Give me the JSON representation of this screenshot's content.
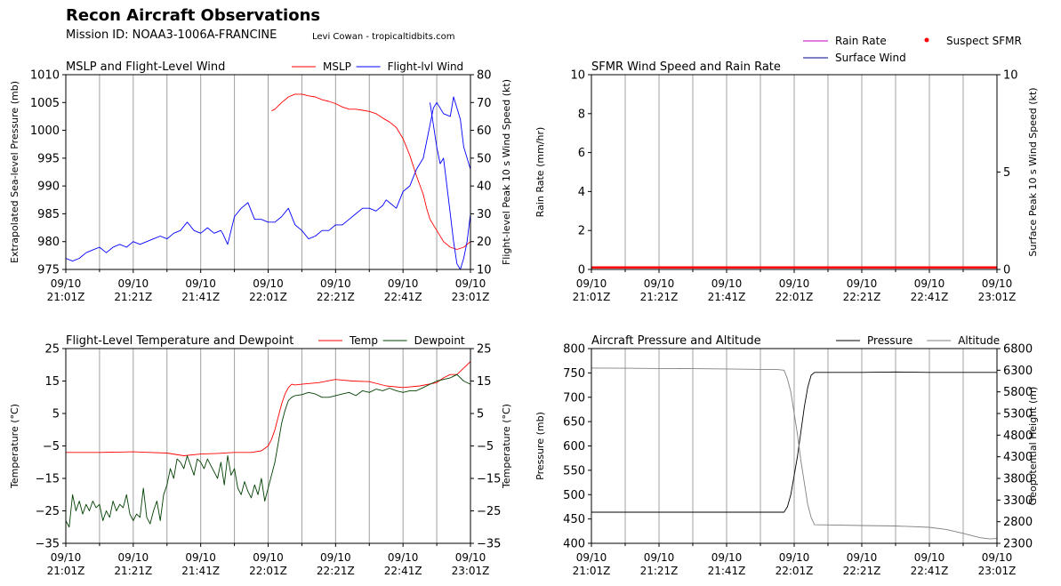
{
  "header": {
    "title": "Recon Aircraft Observations",
    "mission": "Mission ID: NOAA3-1006A-FRANCINE",
    "credit": "Levi Cowan - tropicaltidbits.com"
  },
  "colors": {
    "mslp": "#ff0000",
    "wind": "#0000ff",
    "rain": "#bf00bf",
    "surface_wind": "#00008b",
    "suspect": "#ff0000",
    "temp": "#ff0000",
    "dew": "#004000",
    "pressure": "#000000",
    "altitude": "#808080",
    "grid": "#a0a0a0"
  },
  "time_ticks": [
    "09/10\n21:01Z",
    "09/10\n21:21Z",
    "09/10\n21:41Z",
    "09/10\n22:01Z",
    "09/10\n22:21Z",
    "09/10\n22:41Z",
    "09/10\n23:01Z"
  ],
  "chart_data": [
    {
      "id": "mslp-wind",
      "type": "line",
      "title": "MSLP and Flight-Level Wind",
      "x_unit": "minutes after 21:01Z",
      "xlim": [
        0,
        120
      ],
      "ylabel": "Extrapolated Sea-level Pressure (mb)",
      "ylabel_right": "Flight-level Peak 10 s Wind Speed (kt)",
      "ylim": [
        975,
        1010
      ],
      "yticks": [
        975,
        980,
        985,
        990,
        995,
        1000,
        1005,
        1010
      ],
      "ylim_right": [
        10,
        80
      ],
      "yticks_right": [
        10,
        20,
        30,
        40,
        50,
        60,
        70,
        80
      ],
      "legend": [
        "MSLP",
        "Flight-lvl Wind"
      ],
      "series": [
        {
          "name": "MSLP",
          "axis": "left",
          "color_key": "mslp",
          "x": [
            61,
            62,
            64,
            66,
            68,
            70,
            72,
            74,
            76,
            78,
            80,
            82,
            84,
            86,
            88,
            90,
            92,
            94,
            96,
            98,
            100,
            102,
            104,
            106,
            107,
            108,
            110,
            112,
            114,
            116,
            118,
            120
          ],
          "y": [
            1003.5,
            1003.8,
            1005,
            1006,
            1006.5,
            1006.5,
            1006.2,
            1006,
            1005.5,
            1005.2,
            1004.8,
            1004.2,
            1003.8,
            1003.8,
            1003.6,
            1003.4,
            1003,
            1002.2,
            1001.5,
            1000.5,
            998.5,
            995.5,
            991.8,
            988.5,
            986,
            984,
            982,
            980,
            979,
            978.6,
            979,
            980
          ]
        },
        {
          "name": "Flight-lvl Wind",
          "axis": "right",
          "color_key": "wind",
          "x": [
            0,
            2,
            4,
            6,
            8,
            10,
            12,
            14,
            16,
            18,
            20,
            22,
            24,
            26,
            28,
            30,
            32,
            34,
            36,
            38,
            40,
            42,
            44,
            46,
            46.5,
            48,
            50,
            52,
            54,
            56,
            58,
            60,
            62,
            64,
            66,
            68,
            70,
            72,
            74,
            76,
            78,
            80,
            82,
            84,
            86,
            88,
            90,
            92,
            94,
            95,
            96,
            98,
            100,
            102,
            104,
            106,
            107,
            108,
            109,
            110,
            112,
            114,
            115,
            116,
            117,
            118,
            120
          ],
          "y": [
            14,
            13,
            14,
            16,
            17,
            18,
            16,
            18,
            19,
            18,
            20,
            19,
            20,
            21,
            22,
            21,
            23,
            24,
            27,
            24,
            23,
            25,
            23,
            24,
            23,
            19,
            29,
            32,
            34,
            28,
            28,
            27,
            27,
            29,
            32,
            26,
            24,
            21,
            22,
            24,
            24,
            26,
            26,
            28,
            30,
            32,
            32,
            31,
            33,
            35,
            34,
            32,
            38,
            40,
            46,
            50,
            56,
            62,
            68,
            70,
            66,
            65,
            72,
            68,
            64,
            54,
            46
          ]
        },
        {
          "name": "Flight-lvl Wind (cont.)",
          "axis": "right",
          "color_key": "wind",
          "x": [
            108,
            109,
            110,
            111,
            112,
            113,
            114,
            115,
            116,
            117,
            118,
            119,
            120
          ],
          "y": [
            70,
            62,
            54,
            48,
            50,
            40,
            30,
            20,
            12,
            10,
            14,
            20,
            30
          ]
        }
      ]
    },
    {
      "id": "sfmr-rain",
      "type": "line",
      "title": "SFMR Wind Speed and Rain Rate",
      "x_unit": "minutes after 21:01Z",
      "xlim": [
        0,
        120
      ],
      "ylabel": "Rain Rate (mm/hr)",
      "ylabel_right": "Surface Peak 10 s Wind Speed (kt)",
      "ylim": [
        0,
        10
      ],
      "yticks": [
        0,
        2,
        4,
        6,
        8,
        10
      ],
      "ylim_right": [
        0,
        10
      ],
      "yticks_right": [
        0,
        5,
        10
      ],
      "legend": [
        "Rain Rate",
        "Surface Wind",
        "Suspect SFMR"
      ],
      "series": [
        {
          "name": "Rain Rate",
          "axis": "left",
          "color_key": "rain",
          "x": [
            0,
            120
          ],
          "y": [
            0,
            0
          ]
        },
        {
          "name": "Surface Wind",
          "axis": "right",
          "color_key": "surface_wind",
          "x": [
            0,
            120
          ],
          "y": [
            0,
            0
          ]
        },
        {
          "name": "Suspect SFMR",
          "axis": "right",
          "color_key": "suspect",
          "x": [
            0,
            120
          ],
          "y": [
            0.1,
            0.1
          ]
        }
      ]
    },
    {
      "id": "temp-dew",
      "type": "line",
      "title": "Flight-Level Temperature and Dewpoint",
      "x_unit": "minutes after 21:01Z",
      "xlim": [
        0,
        120
      ],
      "ylabel": "Temperature (°C)",
      "ylabel_right": "Temperature (°C)",
      "ylim": [
        -35,
        25
      ],
      "yticks": [
        -35,
        -25,
        -15,
        -5,
        5,
        15,
        25
      ],
      "legend": [
        "Temp",
        "Dewpoint"
      ],
      "series": [
        {
          "name": "Temp",
          "axis": "left",
          "color_key": "temp",
          "x": [
            0,
            10,
            20,
            25,
            30,
            35,
            40,
            45,
            50,
            55,
            58,
            60,
            61,
            62,
            63,
            64,
            65,
            66,
            67,
            68,
            70,
            75,
            80,
            85,
            90,
            95,
            100,
            105,
            110,
            112,
            114,
            116,
            118,
            120
          ],
          "y": [
            -7,
            -7,
            -6.8,
            -7,
            -7.2,
            -8,
            -7.5,
            -7.3,
            -7,
            -7,
            -6.5,
            -5,
            -3,
            0,
            4,
            8,
            11,
            13,
            14,
            13.8,
            14,
            14.5,
            15.5,
            15,
            14.8,
            13.5,
            13,
            13.5,
            14.5,
            16,
            17,
            17,
            19,
            21
          ]
        },
        {
          "name": "Dewpoint",
          "axis": "left",
          "color_key": "dew",
          "x": [
            0,
            1,
            2,
            3,
            4,
            5,
            6,
            7,
            8,
            9,
            10,
            11,
            12,
            13,
            14,
            15,
            16,
            17,
            18,
            19,
            20,
            21,
            22,
            23,
            24,
            25,
            26,
            27,
            28,
            29,
            30,
            31,
            32,
            33,
            34,
            35,
            36,
            37,
            38,
            39,
            40,
            41,
            42,
            43,
            44,
            45,
            46,
            47,
            48,
            49,
            50,
            51,
            52,
            53,
            54,
            55,
            56,
            57,
            58,
            59,
            60,
            61,
            62,
            63,
            64,
            65,
            66,
            67,
            68,
            70,
            72,
            74,
            76,
            78,
            80,
            82,
            84,
            86,
            88,
            90,
            92,
            94,
            96,
            98,
            100,
            102,
            104,
            106,
            108,
            110,
            112,
            114,
            116,
            118,
            120
          ],
          "y": [
            -28,
            -30,
            -20,
            -25,
            -22,
            -26,
            -23,
            -25,
            -22,
            -24,
            -23,
            -28,
            -25,
            -27,
            -22,
            -25,
            -23,
            -24,
            -20,
            -26,
            -28,
            -26,
            -27,
            -18,
            -27,
            -29,
            -25,
            -22,
            -28,
            -20,
            -17,
            -12,
            -15,
            -9,
            -10,
            -12,
            -8,
            -11,
            -14,
            -9,
            -10,
            -12,
            -9,
            -11,
            -13,
            -15,
            -10,
            -17,
            -8,
            -14,
            -12,
            -18,
            -20,
            -16,
            -19,
            -21,
            -17,
            -20,
            -15,
            -22,
            -18,
            -14,
            -10,
            -4,
            2,
            6,
            9,
            10,
            10.5,
            10.8,
            11.5,
            11,
            10,
            10,
            10.5,
            11,
            11.5,
            10.5,
            12,
            11.5,
            12.5,
            12,
            12.8,
            12,
            11.5,
            12,
            12,
            13,
            14,
            15,
            15.5,
            16,
            17,
            15,
            14
          ]
        }
      ]
    },
    {
      "id": "press-alt",
      "type": "line",
      "title": "Aircraft Pressure and Altitude",
      "x_unit": "minutes after 21:01Z",
      "xlim": [
        0,
        120
      ],
      "ylabel": "Pressure (mb)",
      "ylabel_right": "Geopotential Height (m)",
      "ylim": [
        400,
        800
      ],
      "yticks": [
        400,
        450,
        500,
        550,
        600,
        650,
        700,
        750,
        800
      ],
      "ylim_right": [
        2300,
        6800
      ],
      "yticks_right": [
        2300,
        2800,
        3300,
        3800,
        4300,
        4800,
        5300,
        5800,
        6300,
        6800
      ],
      "legend": [
        "Pressure",
        "Altitude"
      ],
      "series": [
        {
          "name": "Pressure",
          "axis": "left",
          "color_key": "pressure",
          "x": [
            0,
            10,
            20,
            30,
            40,
            50,
            55,
            57,
            58,
            59,
            60,
            61,
            62,
            63,
            64,
            65,
            66,
            70,
            80,
            90,
            100,
            110,
            120
          ],
          "y": [
            464,
            464,
            464,
            464,
            464,
            464,
            464,
            464,
            475,
            500,
            540,
            580,
            630,
            680,
            720,
            745,
            751,
            751,
            751,
            752,
            751,
            751,
            751
          ]
        },
        {
          "name": "Altitude",
          "axis": "right",
          "color_key": "altitude",
          "x": [
            0,
            10,
            20,
            30,
            40,
            50,
            55,
            57,
            58,
            59,
            60,
            61,
            62,
            63,
            64,
            65,
            66,
            70,
            80,
            90,
            100,
            105,
            110,
            115,
            118,
            120
          ],
          "y": [
            6350,
            6345,
            6340,
            6335,
            6330,
            6320,
            6315,
            6300,
            6100,
            5800,
            5300,
            4800,
            4200,
            3700,
            3200,
            2900,
            2730,
            2725,
            2710,
            2700,
            2670,
            2620,
            2530,
            2430,
            2400,
            2410
          ]
        }
      ]
    }
  ]
}
